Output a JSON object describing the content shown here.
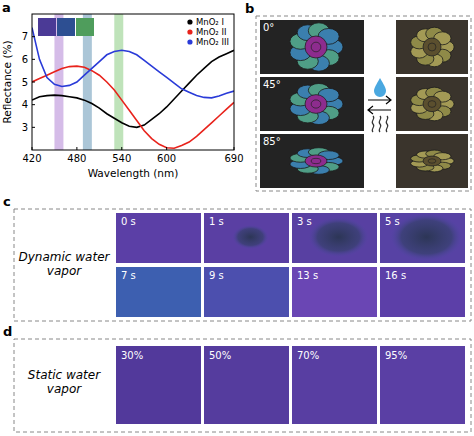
{
  "chart_data": {
    "type": "line",
    "x_label": "Wavelength (nm)",
    "y_label": "Reflectance (%)",
    "x": [
      420,
      430,
      440,
      450,
      460,
      470,
      480,
      490,
      500,
      510,
      520,
      530,
      540,
      550,
      560,
      570,
      580,
      590,
      600,
      610,
      620,
      630,
      640,
      650,
      660,
      670,
      680,
      690
    ],
    "series": [
      {
        "name": "MnO₂ I",
        "color": "#000000",
        "values": [
          4.2,
          4.35,
          4.4,
          4.42,
          4.4,
          4.35,
          4.3,
          4.2,
          4.05,
          3.85,
          3.6,
          3.4,
          3.2,
          3.05,
          3.0,
          3.1,
          3.35,
          3.6,
          3.9,
          4.25,
          4.6,
          4.95,
          5.3,
          5.6,
          5.9,
          6.1,
          6.25,
          6.4
        ]
      },
      {
        "name": "MnO₂ II",
        "color": "#e8231c",
        "values": [
          5.0,
          5.15,
          5.3,
          5.45,
          5.6,
          5.68,
          5.7,
          5.65,
          5.5,
          5.3,
          5.0,
          4.65,
          4.2,
          3.75,
          3.3,
          2.85,
          2.5,
          2.25,
          2.1,
          2.08,
          2.2,
          2.35,
          2.6,
          2.9,
          3.2,
          3.5,
          3.8,
          4.1
        ]
      },
      {
        "name": "MnO₂ III",
        "color": "#2a3bd8",
        "values": [
          7.4,
          6.0,
          5.2,
          4.9,
          4.8,
          4.85,
          5.0,
          5.3,
          5.6,
          5.9,
          6.2,
          6.35,
          6.4,
          6.35,
          6.2,
          5.95,
          5.7,
          5.45,
          5.2,
          4.95,
          4.7,
          4.55,
          4.4,
          4.32,
          4.3,
          4.38,
          4.5,
          4.6
        ]
      }
    ],
    "bands": [
      {
        "start": 450,
        "end": 462,
        "color": "#c7a6e0"
      },
      {
        "start": 488,
        "end": 500,
        "color": "#8fb3c9"
      },
      {
        "start": 530,
        "end": 542,
        "color": "#a9d9a3"
      }
    ],
    "xlim": [
      420,
      690
    ],
    "xticks": [
      420,
      480,
      540,
      600,
      690
    ],
    "ylim": [
      2,
      8
    ],
    "yticks": [
      3,
      4,
      5,
      6,
      7
    ],
    "legend": "upper right",
    "grid": false
  },
  "panels": {
    "letters": [
      "a",
      "b",
      "c",
      "d"
    ],
    "b": {
      "angles": [
        "0°",
        "45°",
        "85°"
      ]
    },
    "c": {
      "title": "Dynamic water vapor",
      "frames": [
        "0 s",
        "1 s",
        "3 s",
        "5 s",
        "7 s",
        "9 s",
        "13 s",
        "16 s"
      ]
    },
    "d": {
      "title": "Static water vapor",
      "frames": [
        "30%",
        "50%",
        "70%",
        "95%"
      ]
    }
  }
}
